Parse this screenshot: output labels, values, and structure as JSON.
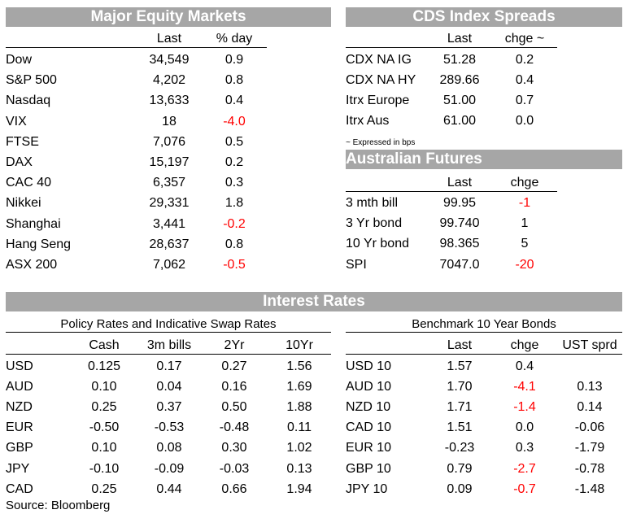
{
  "colors": {
    "band": "#a6a6a6",
    "negative": "#ff0000"
  },
  "equity": {
    "title": "Major Equity Markets",
    "headers": [
      "Last",
      "% day"
    ],
    "rows": [
      {
        "name": "Dow",
        "last": "34,549",
        "chg": "0.9"
      },
      {
        "name": "S&P 500",
        "last": "4,202",
        "chg": "0.8"
      },
      {
        "name": "Nasdaq",
        "last": "13,633",
        "chg": "0.4"
      },
      {
        "name": "VIX",
        "last": "18",
        "chg": "-4.0"
      },
      {
        "name": "FTSE",
        "last": "7,076",
        "chg": "0.5"
      },
      {
        "name": "DAX",
        "last": "15,197",
        "chg": "0.2"
      },
      {
        "name": "CAC 40",
        "last": "6,357",
        "chg": "0.3"
      },
      {
        "name": "Nikkei",
        "last": "29,331",
        "chg": "1.8"
      },
      {
        "name": "Shanghai",
        "last": "3,441",
        "chg": "-0.2"
      },
      {
        "name": "Hang Seng",
        "last": "28,637",
        "chg": "0.8"
      },
      {
        "name": "ASX 200",
        "last": "7,062",
        "chg": "-0.5"
      }
    ]
  },
  "cds": {
    "title": "CDS Index Spreads",
    "headers": [
      "Last",
      "chge ~"
    ],
    "rows": [
      {
        "name": "CDX NA IG",
        "last": "51.28",
        "chg": "0.2"
      },
      {
        "name": "CDX NA HY",
        "last": "289.66",
        "chg": "0.4"
      },
      {
        "name": "Itrx Europe",
        "last": "51.00",
        "chg": "0.7"
      },
      {
        "name": "Itrx Aus",
        "last": "61.00",
        "chg": "0.0"
      }
    ],
    "footnote": "~ Expressed in bps"
  },
  "futures": {
    "title": "Australian Futures",
    "headers": [
      "Last",
      "chge"
    ],
    "rows": [
      {
        "name": "3 mth bill",
        "last": "99.95",
        "chg": "-1"
      },
      {
        "name": "3 Yr bond",
        "last": "99.740",
        "chg": "1"
      },
      {
        "name": "10 Yr bond",
        "last": "98.365",
        "chg": "5"
      },
      {
        "name": "SPI",
        "last": "7047.0",
        "chg": "-20"
      }
    ]
  },
  "rates": {
    "title": "Interest Rates",
    "policy": {
      "title": "Policy Rates and Indicative Swap Rates",
      "headers": [
        "Cash",
        "3m bills",
        "2Yr",
        "10Yr"
      ],
      "rows": [
        {
          "name": "USD",
          "v": [
            "0.125",
            "0.17",
            "0.27",
            "1.56"
          ]
        },
        {
          "name": "AUD",
          "v": [
            "0.10",
            "0.04",
            "0.16",
            "1.69"
          ]
        },
        {
          "name": "NZD",
          "v": [
            "0.25",
            "0.37",
            "0.50",
            "1.88"
          ]
        },
        {
          "name": "EUR",
          "v": [
            "-0.50",
            "-0.53",
            "-0.48",
            "0.11"
          ]
        },
        {
          "name": "GBP",
          "v": [
            "0.10",
            "0.08",
            "0.30",
            "1.02"
          ]
        },
        {
          "name": "JPY",
          "v": [
            "-0.10",
            "-0.09",
            "-0.03",
            "0.13"
          ]
        },
        {
          "name": "CAD",
          "v": [
            "0.25",
            "0.44",
            "0.66",
            "1.94"
          ]
        }
      ]
    },
    "bonds": {
      "title": "Benchmark 10 Year Bonds",
      "headers": [
        "Last",
        "chge",
        "UST sprd"
      ],
      "rows": [
        {
          "name": "USD 10",
          "last": "1.57",
          "chg": "0.4",
          "sprd": ""
        },
        {
          "name": "AUD 10",
          "last": "1.70",
          "chg": "-4.1",
          "sprd": "0.13"
        },
        {
          "name": "NZD 10",
          "last": "1.71",
          "chg": "-1.4",
          "sprd": "0.14"
        },
        {
          "name": "CAD 10",
          "last": "1.51",
          "chg": "0.0",
          "sprd": "-0.06"
        },
        {
          "name": "EUR 10",
          "last": "-0.23",
          "chg": "0.3",
          "sprd": "-1.79"
        },
        {
          "name": "GBP 10",
          "last": "0.79",
          "chg": "-2.7",
          "sprd": "-0.78"
        },
        {
          "name": "JPY 10",
          "last": "0.09",
          "chg": "-0.7",
          "sprd": "-1.48"
        }
      ]
    }
  },
  "source": "Source: Bloomberg"
}
